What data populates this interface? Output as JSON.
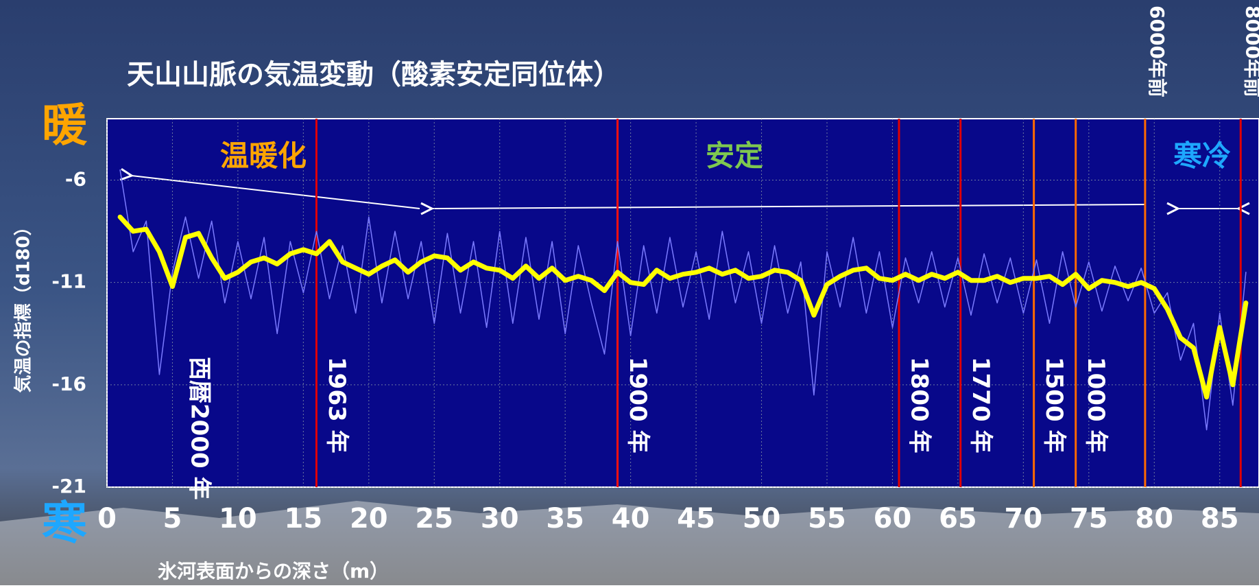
{
  "chart_data": {
    "type": "line",
    "title": "天山山脈の気温変動（酸素安定同位体）",
    "x_label": "氷河表面からの深さ（m）",
    "y_label": "気温の指標（d180）",
    "warm_label": "暖",
    "cold_label": "寒",
    "xlim": [
      0,
      88
    ],
    "ylim": [
      -21,
      -3
    ],
    "xticks": [
      0,
      5,
      10,
      15,
      20,
      25,
      30,
      35,
      40,
      45,
      50,
      55,
      60,
      65,
      70,
      75,
      80,
      85
    ],
    "yticks": [
      -21,
      -16,
      -11,
      -6
    ],
    "grid": true,
    "x": [
      1,
      2,
      3,
      4,
      5,
      6,
      7,
      8,
      9,
      10,
      11,
      12,
      13,
      14,
      15,
      16,
      17,
      18,
      19,
      20,
      21,
      22,
      23,
      24,
      25,
      26,
      27,
      28,
      29,
      30,
      31,
      32,
      33,
      34,
      35,
      36,
      37,
      38,
      39,
      40,
      41,
      42,
      43,
      44,
      45,
      46,
      47,
      48,
      49,
      50,
      51,
      52,
      53,
      54,
      55,
      56,
      57,
      58,
      59,
      60,
      61,
      62,
      63,
      64,
      65,
      66,
      67,
      68,
      69,
      70,
      71,
      72,
      73,
      74,
      75,
      76,
      77,
      78,
      79,
      80,
      81,
      82,
      83,
      84,
      85,
      86,
      87
    ],
    "series": [
      {
        "color": "#7b7bff",
        "width": 1.5,
        "values": [
          -5.5,
          -9.5,
          -8.0,
          -15.5,
          -10.5,
          -7.8,
          -10.8,
          -8.0,
          -12.0,
          -9.0,
          -11.8,
          -8.8,
          -13.5,
          -9.0,
          -11.5,
          -8.5,
          -11.8,
          -9.2,
          -12.5,
          -7.8,
          -12.0,
          -8.5,
          -11.8,
          -9.0,
          -13.0,
          -8.6,
          -12.5,
          -9.0,
          -13.2,
          -8.5,
          -13.0,
          -8.8,
          -12.8,
          -9.0,
          -13.5,
          -9.2,
          -12.0,
          -14.5,
          -9.0,
          -13.6,
          -9.2,
          -12.5,
          -8.8,
          -12.2,
          -9.5,
          -12.8,
          -8.5,
          -12.0,
          -9.5,
          -13.0,
          -9.2,
          -12.5,
          -10.0,
          -16.5,
          -9.5,
          -12.2,
          -8.8,
          -12.5,
          -9.5,
          -13.2,
          -9.8,
          -12.0,
          -9.5,
          -12.2,
          -9.8,
          -12.6,
          -9.6,
          -12.0,
          -9.8,
          -12.5,
          -9.9,
          -13.0,
          -9.5,
          -12.2,
          -10.0,
          -12.4,
          -10.2,
          -11.9,
          -10.3,
          -12.5,
          -11.5,
          -14.8,
          -13.0,
          -18.2,
          -12.5,
          -17.0,
          -10.5
        ]
      },
      {
        "color": "#ffff00",
        "width": 7,
        "values": [
          -7.8,
          -8.5,
          -8.4,
          -9.5,
          -11.2,
          -8.8,
          -8.6,
          -9.8,
          -10.8,
          -10.5,
          -10.0,
          -9.8,
          -10.1,
          -9.6,
          -9.4,
          -9.6,
          -9.0,
          -10.0,
          -10.3,
          -10.6,
          -10.2,
          -9.9,
          -10.5,
          -10.0,
          -9.7,
          -9.8,
          -10.4,
          -10.0,
          -10.3,
          -10.4,
          -10.8,
          -10.2,
          -10.8,
          -10.3,
          -10.9,
          -10.7,
          -10.9,
          -11.4,
          -10.5,
          -11.0,
          -11.1,
          -10.4,
          -10.8,
          -10.6,
          -10.5,
          -10.3,
          -10.6,
          -10.4,
          -10.8,
          -10.7,
          -10.4,
          -10.5,
          -10.9,
          -12.6,
          -11.1,
          -10.7,
          -10.4,
          -10.3,
          -10.8,
          -10.9,
          -10.6,
          -10.9,
          -10.6,
          -10.8,
          -10.5,
          -10.9,
          -10.9,
          -10.7,
          -11.0,
          -10.8,
          -10.8,
          -10.7,
          -11.1,
          -10.6,
          -11.3,
          -10.9,
          -11.0,
          -11.2,
          -11.0,
          -11.3,
          -12.3,
          -13.7,
          -14.2,
          -16.6,
          -13.2,
          -16.0,
          -12.0
        ]
      }
    ],
    "markers": [
      {
        "x": 5.5,
        "label": "西暦2000 年"
      },
      {
        "x": 16,
        "label": "1963 年",
        "color": "#e00000"
      },
      {
        "x": 39,
        "label": "1900 年",
        "color": "#ff1010"
      },
      {
        "x": 60.5,
        "label": "1800 年",
        "color": "#e00000"
      },
      {
        "x": 65.2,
        "label": "1770 年",
        "color": "#e00000"
      },
      {
        "x": 70.8,
        "label": "1500 年",
        "color": "#ff6a00"
      },
      {
        "x": 74,
        "label": "1000 年",
        "color": "#ff6a00"
      },
      {
        "x": 79.3,
        "label": "6000年前",
        "color": "#ff6a00",
        "top": true
      },
      {
        "x": 86.6,
        "label": "8000年前",
        "color": "#e00000",
        "top": true
      }
    ],
    "periods": [
      {
        "label": "温暖化",
        "color": "#ffa500"
      },
      {
        "label": "安定",
        "color": "#7ec850"
      },
      {
        "label": "寒冷",
        "color": "#1ea7ff"
      }
    ]
  }
}
